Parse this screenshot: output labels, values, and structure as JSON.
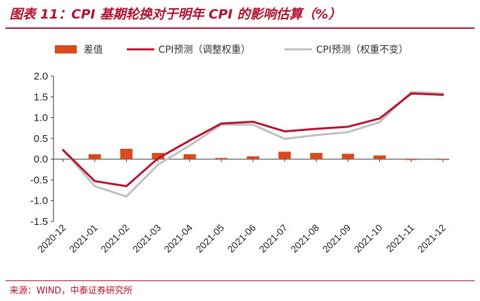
{
  "header": {
    "title": "图表 11：CPI 基期轮换对于明年 CPI 的影响估算（%）"
  },
  "footer": {
    "source": "来源：WIND，中泰证券研究所"
  },
  "chart_data": {
    "type": "bar",
    "title": "图表 11：CPI 基期轮换对于明年 CPI 的影响估算（%）",
    "xlabel": "",
    "ylabel": "",
    "ylim": [
      -1.5,
      2.0
    ],
    "yticks": [
      "2.0",
      "1.5",
      "1.0",
      "0.5",
      "0.0",
      "-0.5",
      "-1.0",
      "-1.5"
    ],
    "yticks_values": [
      2.0,
      1.5,
      1.0,
      0.5,
      0.0,
      -0.5,
      -1.0,
      -1.5
    ],
    "grid": false,
    "legend_position": "top",
    "categories": [
      "2020-12",
      "2021-01",
      "2021-02",
      "2021-03",
      "2021-04",
      "2021-05",
      "2021-06",
      "2021-07",
      "2021-08",
      "2021-09",
      "2021-10",
      "2021-11",
      "2021-12"
    ],
    "series": [
      {
        "name": "差值",
        "kind": "bar",
        "color": "#d94b1e",
        "values": [
          null,
          0.12,
          0.25,
          0.15,
          0.12,
          0.03,
          0.07,
          0.18,
          0.15,
          0.13,
          0.09,
          -0.02,
          -0.01
        ]
      },
      {
        "name": "CPI预测（调整权重）",
        "kind": "line",
        "color": "#b8122f",
        "values": [
          0.22,
          -0.53,
          -0.65,
          0.02,
          0.45,
          0.86,
          0.9,
          0.67,
          0.73,
          0.78,
          0.98,
          1.58,
          1.55
        ]
      },
      {
        "name": "CPI预测（权重不变）",
        "kind": "line",
        "color": "#bfbfbf",
        "values": [
          0.22,
          -0.65,
          -0.9,
          -0.13,
          0.33,
          0.83,
          0.83,
          0.49,
          0.58,
          0.65,
          0.89,
          1.62,
          1.58
        ]
      }
    ]
  }
}
